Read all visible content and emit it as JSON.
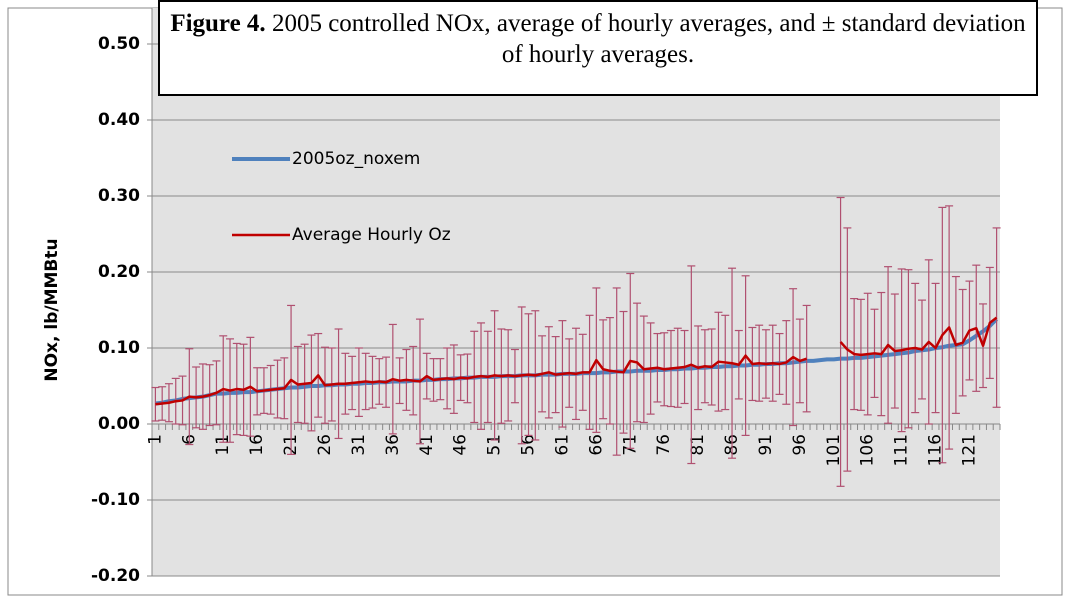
{
  "chart_data": {
    "type": "line",
    "figure_label": "Figure 4.",
    "title": "2005 controlled NOx, average of hourly averages, and ± standard deviation of hourly averages.",
    "ylabel": "NOx, lb/MMBtu",
    "categories": [
      1,
      null,
      null,
      null,
      null,
      6,
      null,
      null,
      null,
      null,
      11,
      null,
      null,
      null,
      null,
      16,
      null,
      null,
      null,
      null,
      21,
      null,
      null,
      null,
      null,
      26,
      null,
      null,
      null,
      null,
      31,
      null,
      null,
      null,
      null,
      36,
      null,
      null,
      null,
      null,
      41,
      null,
      null,
      null,
      null,
      46,
      null,
      null,
      null,
      null,
      51,
      null,
      null,
      null,
      null,
      56,
      null,
      null,
      null,
      null,
      61,
      null,
      null,
      null,
      null,
      66,
      null,
      null,
      null,
      null,
      71,
      null,
      null,
      null,
      null,
      76,
      null,
      null,
      null,
      null,
      81,
      null,
      null,
      null,
      null,
      86,
      null,
      null,
      null,
      null,
      91,
      null,
      null,
      null,
      null,
      96,
      null,
      null,
      null,
      null,
      101,
      null,
      null,
      null,
      null,
      106,
      null,
      null,
      null,
      null,
      111,
      null,
      null,
      null,
      null,
      116,
      null,
      null,
      null,
      null,
      121,
      null,
      null,
      null,
      null
    ],
    "series": [
      {
        "name": "2005oz_noxem",
        "color": "#4f81bd",
        "values": [
          0.027,
          0.028,
          0.03,
          0.031,
          0.033,
          0.034,
          0.035,
          0.036,
          0.038,
          0.04,
          0.04,
          0.041,
          0.041,
          0.042,
          0.042,
          0.043,
          0.044,
          0.045,
          0.046,
          0.047,
          0.048,
          0.048,
          0.049,
          0.05,
          0.05,
          0.051,
          0.051,
          0.052,
          0.052,
          0.053,
          0.053,
          0.054,
          0.054,
          0.055,
          0.055,
          0.056,
          0.056,
          0.056,
          0.057,
          0.057,
          0.058,
          0.058,
          0.059,
          0.059,
          0.06,
          0.06,
          0.061,
          0.061,
          0.062,
          0.062,
          0.062,
          0.063,
          0.063,
          0.063,
          0.064,
          0.064,
          0.064,
          0.065,
          0.065,
          0.065,
          0.066,
          0.066,
          0.066,
          0.067,
          0.067,
          0.067,
          0.068,
          0.068,
          0.069,
          0.069,
          0.069,
          0.07,
          0.07,
          0.07,
          0.071,
          0.071,
          0.072,
          0.072,
          0.073,
          0.073,
          0.074,
          0.074,
          0.075,
          0.075,
          0.076,
          0.076,
          0.077,
          0.077,
          0.078,
          0.078,
          0.079,
          0.079,
          0.08,
          0.08,
          0.081,
          0.082,
          0.083,
          0.083,
          0.084,
          0.085,
          0.085,
          0.086,
          0.086,
          0.087,
          0.087,
          0.088,
          0.089,
          0.09,
          0.091,
          0.092,
          0.093,
          0.094,
          0.096,
          0.097,
          0.098,
          0.1,
          0.101,
          0.103,
          0.104,
          0.105,
          0.11,
          0.116,
          0.122,
          0.129,
          0.138
        ]
      },
      {
        "name": "Average Hourly Oz",
        "color": "#c00000",
        "error_color": "#b05070",
        "values": [
          0.026,
          0.027,
          0.028,
          0.03,
          0.031,
          0.036,
          0.035,
          0.036,
          0.038,
          0.041,
          0.046,
          0.044,
          0.046,
          0.045,
          0.049,
          0.043,
          0.044,
          0.045,
          0.046,
          0.047,
          0.058,
          0.052,
          0.053,
          0.054,
          0.064,
          0.051,
          0.052,
          0.053,
          0.053,
          0.054,
          0.055,
          0.056,
          0.055,
          0.056,
          0.055,
          0.059,
          0.057,
          0.058,
          0.057,
          0.056,
          0.063,
          0.058,
          0.059,
          0.06,
          0.059,
          0.061,
          0.06,
          0.062,
          0.063,
          0.062,
          0.064,
          0.063,
          0.064,
          0.063,
          0.064,
          0.065,
          0.064,
          0.066,
          0.068,
          0.065,
          0.066,
          0.067,
          0.066,
          0.068,
          0.068,
          0.084,
          0.072,
          0.07,
          0.069,
          0.068,
          0.083,
          0.081,
          0.072,
          0.073,
          0.074,
          0.072,
          0.073,
          0.074,
          0.075,
          0.078,
          0.074,
          0.076,
          0.075,
          0.082,
          0.081,
          0.08,
          0.078,
          0.09,
          0.079,
          0.08,
          0.079,
          0.08,
          0.079,
          0.081,
          0.088,
          0.083,
          0.086,
          null,
          null,
          null,
          null,
          0.108,
          0.098,
          0.092,
          0.091,
          0.092,
          0.093,
          0.092,
          0.104,
          0.096,
          0.097,
          0.099,
          0.1,
          0.098,
          0.108,
          0.1,
          0.117,
          0.127,
          0.104,
          0.107,
          0.123,
          0.126,
          0.103,
          0.133,
          0.14
        ],
        "errors": [
          0.022,
          0.022,
          0.025,
          0.03,
          0.032,
          0.063,
          0.04,
          0.043,
          0.04,
          0.042,
          0.07,
          0.068,
          0.06,
          0.06,
          0.065,
          0.031,
          0.03,
          0.032,
          0.038,
          0.04,
          0.098,
          0.05,
          0.052,
          0.063,
          0.055,
          0.05,
          0.048,
          0.072,
          0.04,
          0.035,
          0.045,
          0.037,
          0.034,
          0.03,
          0.033,
          0.072,
          0.03,
          0.04,
          0.045,
          0.082,
          0.03,
          0.028,
          0.027,
          0.04,
          0.045,
          0.03,
          0.032,
          0.06,
          0.07,
          0.06,
          0.085,
          0.062,
          0.06,
          0.035,
          0.09,
          0.08,
          0.085,
          0.05,
          0.06,
          0.05,
          0.07,
          0.045,
          0.06,
          0.05,
          0.075,
          0.095,
          0.065,
          0.07,
          0.11,
          0.08,
          0.115,
          0.078,
          0.07,
          0.06,
          0.045,
          0.048,
          0.05,
          0.052,
          0.048,
          0.13,
          0.055,
          0.048,
          0.05,
          0.065,
          0.062,
          0.125,
          0.045,
          0.105,
          0.048,
          0.05,
          0.045,
          0.05,
          0.04,
          0.055,
          0.09,
          0.055,
          0.07,
          null,
          null,
          null,
          null,
          0.19,
          0.16,
          0.073,
          0.073,
          0.08,
          0.058,
          0.081,
          0.103,
          0.075,
          0.107,
          0.104,
          0.085,
          0.065,
          0.108,
          0.085,
          0.168,
          0.16,
          0.09,
          0.07,
          0.065,
          0.083,
          0.055,
          0.073,
          0.118
        ]
      }
    ],
    "ylim": [
      -0.2,
      0.5
    ],
    "yticks": [
      {
        "value": -0.2,
        "label": "-0.20"
      },
      {
        "value": -0.1,
        "label": "-0.10"
      },
      {
        "value": 0,
        "label": "0.00"
      },
      {
        "value": 0.1,
        "label": "0.10"
      },
      {
        "value": 0.2,
        "label": "0.20"
      },
      {
        "value": 0.3,
        "label": "0.30"
      },
      {
        "value": 0.4,
        "label": "0.40"
      },
      {
        "value": 0.5,
        "label": "0.50"
      }
    ],
    "grid": true,
    "legend": "upper left"
  }
}
